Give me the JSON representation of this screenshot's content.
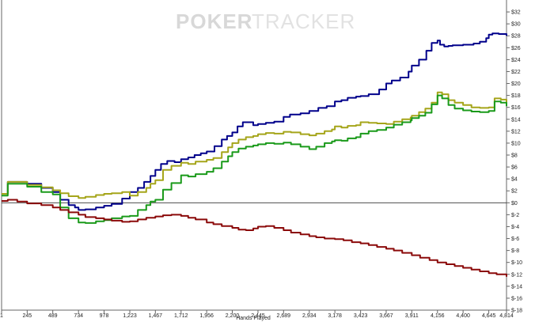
{
  "watermark": {
    "part1": "POKER",
    "part2": "TRACKER"
  },
  "chart_data": {
    "type": "line",
    "title": "",
    "xlabel": "Hands Played",
    "ylabel": "",
    "xlim": [
      1,
      4814
    ],
    "ylim": [
      -18,
      34
    ],
    "x_ticks": [
      1,
      245,
      489,
      734,
      978,
      1223,
      1467,
      1712,
      1956,
      2200,
      2445,
      2689,
      2934,
      3178,
      3423,
      3667,
      3911,
      4156,
      4400,
      4645,
      4814
    ],
    "x_tick_labels": [
      "1",
      "245",
      "489",
      "734",
      "978",
      "1,223",
      "1,467",
      "1,712",
      "1,956",
      "2,200",
      "2,445",
      "2,689",
      "2,934",
      "3,178",
      "3,423",
      "3,667",
      "3,911",
      "4,156",
      "4,400",
      "4,645",
      "4,814"
    ],
    "y_ticks": [
      32,
      30,
      28,
      26,
      24,
      22,
      20,
      18,
      16,
      14,
      12,
      10,
      8,
      6,
      4,
      2,
      0,
      -2,
      -4,
      -6,
      -8,
      -10,
      -12,
      -14,
      -16,
      -18
    ],
    "y_tick_labels": [
      "$32",
      "$30",
      "$28",
      "$26",
      "$24",
      "$22",
      "$20",
      "$18",
      "$16",
      "$14",
      "$12",
      "$10",
      "$8",
      "$6",
      "$4",
      "$2",
      "$0",
      "$-2",
      "$-4",
      "$-6",
      "$-8",
      "$-10",
      "$-12",
      "$-14",
      "$-16",
      "$-18"
    ],
    "grid": false,
    "zero_line": true,
    "series": [
      {
        "color": "#00008b",
        "x": [
          1,
          60,
          245,
          380,
          489,
          560,
          640,
          700,
          734,
          800,
          900,
          978,
          1050,
          1150,
          1223,
          1300,
          1360,
          1420,
          1467,
          1520,
          1580,
          1650,
          1712,
          1780,
          1840,
          1900,
          1956,
          2030,
          2100,
          2150,
          2200,
          2250,
          2300,
          2400,
          2445,
          2520,
          2600,
          2689,
          2750,
          2850,
          2934,
          3020,
          3100,
          3178,
          3240,
          3300,
          3380,
          3423,
          3500,
          3600,
          3667,
          3720,
          3800,
          3880,
          3911,
          3980,
          4050,
          4100,
          4156,
          4180,
          4220,
          4260,
          4300,
          4400,
          4500,
          4560,
          4620,
          4645,
          4680,
          4740,
          4814
        ],
        "y": [
          1.5,
          3.5,
          3.2,
          2.5,
          1.8,
          0.5,
          -0.4,
          -0.8,
          -1.2,
          -1.1,
          -0.8,
          -0.5,
          -0.2,
          0.7,
          1.8,
          2.5,
          3.5,
          4.5,
          5.5,
          6.5,
          7,
          6.8,
          7.3,
          7.6,
          8,
          8.3,
          8.6,
          9.5,
          10.6,
          11.2,
          11.8,
          12.8,
          13.5,
          13,
          13.2,
          13.4,
          13.6,
          14.4,
          14.8,
          15,
          15.4,
          15.9,
          16.2,
          17,
          17.2,
          17.6,
          17.8,
          17.9,
          18.2,
          19,
          20,
          20.5,
          21,
          22,
          23,
          24,
          25.5,
          26.8,
          27.2,
          26.5,
          26.2,
          26.3,
          26.4,
          26.5,
          26.7,
          27,
          27.6,
          28.2,
          28.4,
          28.3,
          28
        ]
      },
      {
        "color": "#a5a51a",
        "x": [
          1,
          60,
          245,
          380,
          489,
          560,
          640,
          734,
          800,
          900,
          978,
          1050,
          1150,
          1223,
          1300,
          1380,
          1420,
          1467,
          1540,
          1620,
          1712,
          1780,
          1850,
          1956,
          2020,
          2100,
          2160,
          2200,
          2260,
          2330,
          2400,
          2445,
          2520,
          2600,
          2689,
          2760,
          2850,
          2934,
          3000,
          3080,
          3150,
          3178,
          3240,
          3300,
          3380,
          3423,
          3500,
          3580,
          3667,
          3740,
          3820,
          3900,
          3911,
          3980,
          4040,
          4100,
          4156,
          4200,
          4260,
          4320,
          4400,
          4480,
          4560,
          4645,
          4700,
          4760,
          4814
        ],
        "y": [
          1.5,
          3.5,
          3,
          2.6,
          2.1,
          1.6,
          1.1,
          0.8,
          1,
          1.3,
          1.5,
          1.6,
          1.8,
          1.2,
          1.8,
          2.5,
          3.2,
          3.8,
          5.5,
          6.2,
          6.7,
          6.5,
          6.9,
          7.2,
          7.5,
          8.5,
          9.3,
          10,
          10.6,
          11,
          11.2,
          11.5,
          11.7,
          11.6,
          11.9,
          11.8,
          11.5,
          11.3,
          11.6,
          12,
          12.3,
          12.8,
          12.6,
          12.9,
          13,
          13.5,
          13.4,
          13.3,
          13.2,
          13.6,
          14,
          14.3,
          14.6,
          15.2,
          15.8,
          16.8,
          18.5,
          18.2,
          17.2,
          16.8,
          16.4,
          16,
          15.9,
          16,
          17.5,
          17.3,
          16.8
        ]
      },
      {
        "color": "#1a9a1a",
        "x": [
          1,
          60,
          245,
          380,
          489,
          560,
          640,
          734,
          800,
          900,
          978,
          1050,
          1150,
          1223,
          1300,
          1380,
          1420,
          1467,
          1540,
          1620,
          1712,
          1780,
          1850,
          1956,
          2020,
          2100,
          2160,
          2200,
          2260,
          2330,
          2400,
          2445,
          2520,
          2600,
          2689,
          2760,
          2850,
          2934,
          3000,
          3080,
          3150,
          3178,
          3240,
          3300,
          3380,
          3423,
          3500,
          3580,
          3667,
          3740,
          3820,
          3900,
          3911,
          3980,
          4040,
          4100,
          4156,
          4200,
          4260,
          4320,
          4400,
          4480,
          4560,
          4645,
          4700,
          4760,
          4814
        ],
        "y": [
          1.2,
          3.2,
          2.7,
          1.8,
          1.4,
          -0.8,
          -2.6,
          -3.3,
          -3.4,
          -3.1,
          -2.9,
          -2.6,
          -2.3,
          -2.2,
          -1.2,
          -0.4,
          0.2,
          0.5,
          2.2,
          3.3,
          4.6,
          4.4,
          4.8,
          5.2,
          5.8,
          6.9,
          7.8,
          8.5,
          9.1,
          9.4,
          9.6,
          9.8,
          10,
          9.9,
          10.1,
          9.8,
          9.4,
          9,
          9.4,
          10,
          10.3,
          10.5,
          10.4,
          10.8,
          11,
          11.6,
          12,
          12.2,
          12.6,
          13.1,
          13.5,
          13.8,
          14.2,
          14.6,
          15.1,
          16.5,
          18,
          17.5,
          16.4,
          15.8,
          15.5,
          15.3,
          15.2,
          15.4,
          17,
          16.8,
          16.2
        ]
      },
      {
        "color": "#8b0a0a",
        "x": [
          1,
          60,
          150,
          245,
          380,
          489,
          560,
          640,
          734,
          800,
          900,
          978,
          1050,
          1150,
          1223,
          1300,
          1380,
          1467,
          1540,
          1620,
          1712,
          1780,
          1850,
          1956,
          2020,
          2100,
          2200,
          2260,
          2330,
          2400,
          2445,
          2520,
          2600,
          2689,
          2760,
          2850,
          2934,
          3000,
          3080,
          3178,
          3260,
          3340,
          3423,
          3500,
          3580,
          3667,
          3740,
          3820,
          3911,
          3990,
          4080,
          4156,
          4240,
          4320,
          4400,
          4480,
          4560,
          4645,
          4720,
          4814
        ],
        "y": [
          0.3,
          0.5,
          0.2,
          -0.1,
          -0.4,
          -0.8,
          -1.2,
          -1.6,
          -2,
          -2.4,
          -2.6,
          -2.8,
          -3,
          -3.2,
          -3.1,
          -2.8,
          -2.5,
          -2.3,
          -2.1,
          -2,
          -2.2,
          -2.5,
          -2.8,
          -3.3,
          -3.6,
          -3.9,
          -4.2,
          -4.5,
          -4.6,
          -4.3,
          -4,
          -3.9,
          -4.2,
          -4.6,
          -5,
          -5.3,
          -5.6,
          -5.8,
          -6,
          -6.1,
          -6.3,
          -6.6,
          -6.8,
          -7.1,
          -7.4,
          -7.7,
          -8,
          -8.4,
          -8.8,
          -9.2,
          -9.6,
          -10,
          -10.3,
          -10.6,
          -10.9,
          -11.2,
          -11.5,
          -11.8,
          -12,
          -12.4
        ]
      }
    ]
  }
}
